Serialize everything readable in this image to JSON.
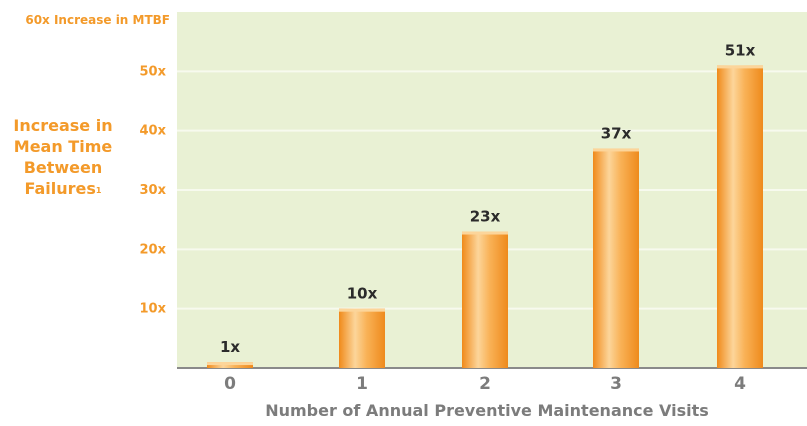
{
  "chart_data": {
    "type": "bar",
    "top_label": "60x Increase in MTBF",
    "ylabel": "Increase in Mean Time Between Failures",
    "ylabel_note": "1",
    "xlabel": "Number of Annual Preventive Maintenance Visits",
    "categories": [
      "0",
      "1",
      "2",
      "3",
      "4"
    ],
    "values": [
      1,
      10,
      23,
      37,
      51
    ],
    "data_labels": [
      "1x",
      "10x",
      "23x",
      "37x",
      "51x"
    ],
    "yticks": [
      {
        "value": 10,
        "label": "10x"
      },
      {
        "value": 20,
        "label": "20x"
      },
      {
        "value": 30,
        "label": "30x"
      },
      {
        "value": 40,
        "label": "40x"
      },
      {
        "value": 50,
        "label": "50x"
      },
      {
        "value": 60,
        "label": "60x Increase in MTBF"
      }
    ],
    "ylim": [
      0,
      60
    ],
    "grid": true,
    "colors": {
      "plot_background": "#e9f1d4",
      "gridline": "#f7faee",
      "bar": "#f7a035",
      "bar_highlight": "#fcd59a",
      "tick_label": "#f39a2a",
      "axis_label": "#7c7c7c",
      "data_label": "#2b2b2b"
    }
  }
}
